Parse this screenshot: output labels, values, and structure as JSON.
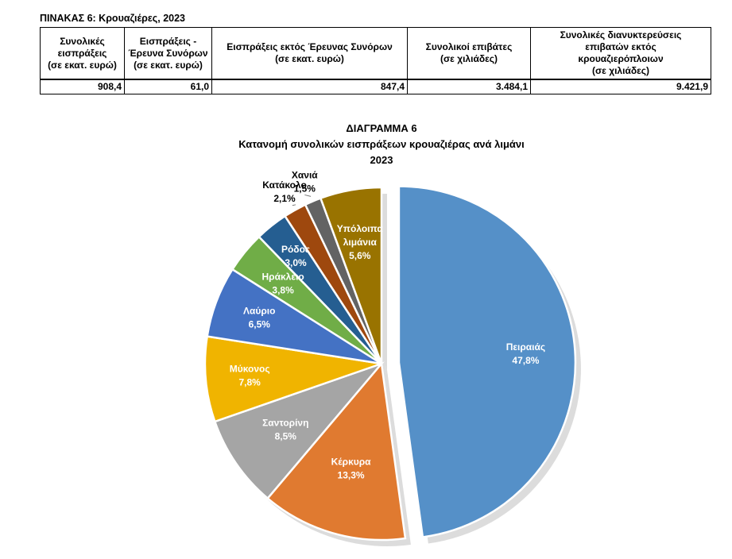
{
  "table": {
    "title": "ΠΙΝΑΚΑΣ 6: Κρουαζιέρες, 2023",
    "headers": [
      [
        "Συνολικές",
        "εισπράξεις",
        "(σε εκατ. ευρώ)"
      ],
      [
        "Εισπράξεις -",
        "Έρευνα Συνόρων",
        "(σε εκατ. ευρώ)"
      ],
      [
        "Εισπράξεις εκτός Έρευνας Συνόρων",
        "(σε εκατ. ευρώ)"
      ],
      [
        "Συνολικοί επιβάτες",
        "(σε χιλιάδες)"
      ],
      [
        "Συνολικές διανυκτερεύσεις",
        "επιβατών εκτός",
        "κρουαζιερόπλοιων",
        "(σε χιλιάδες)"
      ]
    ],
    "values": [
      "908,4",
      "61,0",
      "847,4",
      "3.484,1",
      "9.421,9"
    ]
  },
  "chart_data": {
    "type": "pie",
    "title": [
      "ΔΙΑΓΡΑΜΜΑ 6",
      "Κατανομή συνολικών εισπράξεων κρουαζιέρας ανά λιμάνι",
      "2023"
    ],
    "slices": [
      {
        "label": "Πειραιάς",
        "value": 47.8,
        "value_text": "47,8%",
        "color": "#5590C8"
      },
      {
        "label": "Κέρκυρα",
        "value": 13.3,
        "value_text": "13,3%",
        "color": "#E07A30"
      },
      {
        "label": "Σαντορίνη",
        "value": 8.5,
        "value_text": "8,5%",
        "color": "#A5A5A5"
      },
      {
        "label": "Μύκονος",
        "value": 7.8,
        "value_text": "7,8%",
        "color": "#F0B400"
      },
      {
        "label": "Λαύριο",
        "value": 6.5,
        "value_text": "6,5%",
        "color": "#4472C4"
      },
      {
        "label": "Ηράκλειο",
        "value": 3.8,
        "value_text": "3,8%",
        "color": "#70AD47"
      },
      {
        "label": "Ρόδος",
        "value": 3.0,
        "value_text": "3,0%",
        "color": "#255E91"
      },
      {
        "label": "Κατάκολο",
        "value": 2.1,
        "value_text": "2,1%",
        "color": "#9E480E"
      },
      {
        "label": "Χανιά",
        "value": 1.5,
        "value_text": "1,5%",
        "color": "#636363"
      },
      {
        "label": [
          "Υπόλοιπα",
          "λιμάνια"
        ],
        "value": 5.6,
        "value_text": "5,6%",
        "color": "#997300"
      }
    ]
  }
}
